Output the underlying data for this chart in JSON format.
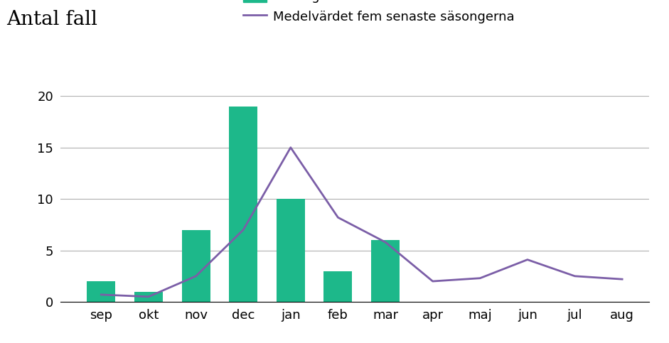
{
  "months": [
    "sep",
    "okt",
    "nov",
    "dec",
    "jan",
    "feb",
    "mar",
    "apr",
    "maj",
    "jun",
    "jul",
    "aug"
  ],
  "bar_values": [
    2,
    1,
    7,
    19,
    10,
    3,
    6,
    null,
    null,
    null,
    null,
    null
  ],
  "line_values": [
    0.7,
    0.5,
    2.5,
    7.0,
    15.0,
    8.2,
    5.8,
    2.0,
    2.3,
    4.1,
    2.5,
    2.2
  ],
  "bar_color": "#1db88a",
  "line_color": "#7b5ea7",
  "ylabel": "Antal fall",
  "ylim": [
    0,
    20
  ],
  "yticks": [
    0,
    5,
    10,
    15,
    20
  ],
  "legend_line_label": "Medelvärdet fem senaste säsongerna",
  "ylabel_fontsize": 20,
  "axis_fontsize": 13,
  "legend_fontsize": 13,
  "background_color": "#ffffff",
  "grid_color": "#b0b0b0"
}
